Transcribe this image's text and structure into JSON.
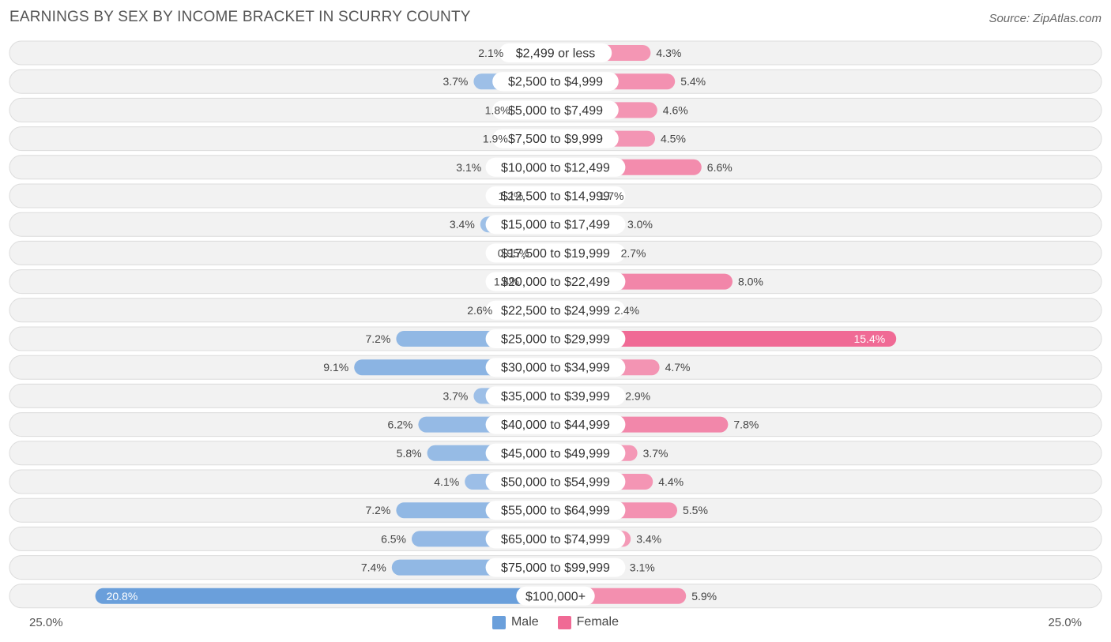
{
  "title": "EARNINGS BY SEX BY INCOME BRACKET IN SCURRY COUNTY",
  "source": "Source: ZipAtlas.com",
  "axis": {
    "left_label": "25.0%",
    "right_label": "25.0%"
  },
  "legend": {
    "male_label": "Male",
    "female_label": "Female"
  },
  "colors": {
    "male_light": "#a9c7ea",
    "male_dark": "#6a9fdb",
    "female_light": "#f5a8c1",
    "female_dark": "#f06a95",
    "row_bg": "#f2f2f2",
    "row_border": "#dcdcdc"
  },
  "chart_data": {
    "type": "bar",
    "orientation": "horizontal-diverging",
    "xlim": [
      -25,
      25
    ],
    "categories": [
      "$2,499 or less",
      "$2,500 to $4,999",
      "$5,000 to $7,499",
      "$7,500 to $9,999",
      "$10,000 to $12,499",
      "$12,500 to $14,999",
      "$15,000 to $17,499",
      "$17,500 to $19,999",
      "$20,000 to $22,499",
      "$22,500 to $24,999",
      "$25,000 to $29,999",
      "$30,000 to $34,999",
      "$35,000 to $39,999",
      "$40,000 to $44,999",
      "$45,000 to $49,999",
      "$50,000 to $54,999",
      "$55,000 to $64,999",
      "$65,000 to $74,999",
      "$75,000 to $99,999",
      "$100,000+"
    ],
    "series": [
      {
        "name": "Male",
        "values": [
          2.1,
          3.7,
          1.8,
          1.9,
          3.1,
          1.2,
          3.4,
          0.95,
          1.4,
          2.6,
          7.2,
          9.1,
          3.7,
          6.2,
          5.8,
          4.1,
          7.2,
          6.5,
          7.4,
          20.8
        ],
        "labels": [
          "2.1%",
          "3.7%",
          "1.8%",
          "1.9%",
          "3.1%",
          "1.2%",
          "3.4%",
          "0.95%",
          "1.4%",
          "2.6%",
          "7.2%",
          "9.1%",
          "3.7%",
          "6.2%",
          "5.8%",
          "4.1%",
          "7.2%",
          "6.5%",
          "7.4%",
          "20.8%"
        ]
      },
      {
        "name": "Female",
        "values": [
          4.3,
          5.4,
          4.6,
          4.5,
          6.6,
          1.7,
          3.0,
          2.7,
          8.0,
          2.4,
          15.4,
          4.7,
          2.9,
          7.8,
          3.7,
          4.4,
          5.5,
          3.4,
          3.1,
          5.9
        ],
        "labels": [
          "4.3%",
          "5.4%",
          "4.6%",
          "4.5%",
          "6.6%",
          "1.7%",
          "3.0%",
          "2.7%",
          "8.0%",
          "2.4%",
          "15.4%",
          "4.7%",
          "2.9%",
          "7.8%",
          "3.7%",
          "4.4%",
          "5.5%",
          "3.4%",
          "3.1%",
          "5.9%"
        ]
      }
    ]
  }
}
